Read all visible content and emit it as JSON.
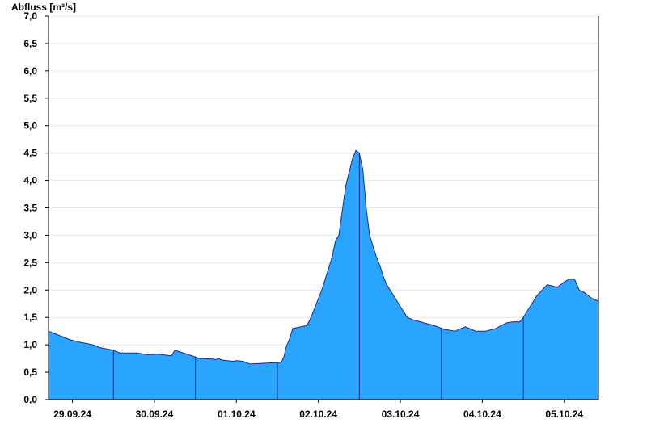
{
  "chart_data": {
    "type": "area",
    "title": "",
    "ylabel": "Abfluss [m³/s]",
    "xlabel": "",
    "ylim": [
      0,
      7.0
    ],
    "yticks": [
      "0,0",
      "0,5",
      "1,0",
      "1,5",
      "2,0",
      "2,5",
      "3,0",
      "3,5",
      "4,0",
      "4,5",
      "5,0",
      "5,5",
      "6,0",
      "6,5",
      "7,0"
    ],
    "ytick_values": [
      0,
      0.5,
      1.0,
      1.5,
      2.0,
      2.5,
      3.0,
      3.5,
      4.0,
      4.5,
      5.0,
      5.5,
      6.0,
      6.5,
      7.0
    ],
    "xlim": [
      "28.09.24 17:00",
      "05.10.24 10:00"
    ],
    "xticks": [
      "29.09.24",
      "30.09.24",
      "01.10.24",
      "02.10.24",
      "03.10.24",
      "04.10.24",
      "05.10.24"
    ],
    "day_separators": [
      "29.09.24 12:00",
      "30.09.24 12:00",
      "01.10.24 12:00",
      "02.10.24 12:00",
      "03.10.24 12:00",
      "04.10.24 12:00"
    ],
    "grid": true,
    "colors": {
      "fill": "#2aa5ff",
      "line": "#1a2b8c"
    },
    "series": [
      {
        "x": [
          "28.09.24 17:00",
          "28.09.24 19:00",
          "28.09.24 21:00",
          "28.09.24 23:00",
          "29.09.24 02:00",
          "29.09.24 06:00",
          "29.09.24 08:00",
          "29.09.24 12:00",
          "29.09.24 14:00",
          "29.09.24 16:00",
          "29.09.24 19:00",
          "29.09.24 22:00",
          "30.09.24 01:00",
          "30.09.24 05:00",
          "30.09.24 06:00",
          "30.09.24 12:00",
          "30.09.24 13:00",
          "30.09.24 14:00",
          "30.09.24 17:00",
          "30.09.24 18:00",
          "30.09.24 18:45",
          "30.09.24 19:30",
          "30.09.24 20:00",
          "30.09.24 23:00",
          "01.10.24 00:00",
          "01.10.24 02:00",
          "01.10.24 02:45",
          "01.10.24 03:30",
          "01.10.24 04:00",
          "01.10.24 13:00",
          "01.10.24 13:30",
          "01.10.24 14:00",
          "01.10.24 14:30",
          "01.10.24 15:30",
          "01.10.24 16:30",
          "01.10.24 20:30",
          "01.10.24 21:30",
          "02.10.24 01:00",
          "02.10.24 04:00",
          "02.10.24 05:00",
          "02.10.24 06:00",
          "02.10.24 08:00",
          "02.10.24 10:00",
          "02.10.24 11:00",
          "02.10.24 12:00",
          "02.10.24 13:00",
          "02.10.24 14:00",
          "02.10.24 15:00",
          "02.10.24 17:00",
          "02.10.24 18:00",
          "02.10.24 19:00",
          "02.10.24 20:00",
          "02.10.24 21:00",
          "02.10.24 22:00",
          "02.10.24 23:00",
          "03.10.24 00:00",
          "03.10.24 01:00",
          "03.10.24 02:00",
          "03.10.24 04:00",
          "03.10.24 07:00",
          "03.10.24 10:00",
          "03.10.24 13:00",
          "03.10.24 16:00",
          "03.10.24 19:00",
          "03.10.24 22:00",
          "04.10.24 01:00",
          "04.10.24 04:00",
          "04.10.24 07:00",
          "04.10.24 09:00",
          "04.10.24 10:00",
          "04.10.24 11:00",
          "04.10.24 12:00",
          "04.10.24 13:00",
          "04.10.24 16:00",
          "04.10.24 19:00",
          "04.10.24 22:00",
          "05.10.24 00:00",
          "05.10.24 01:30",
          "05.10.24 03:00",
          "05.10.24 03:40",
          "05.10.24 04:20",
          "05.10.24 06:00",
          "05.10.24 07:00",
          "05.10.24 08:00",
          "05.10.24 09:00",
          "05.10.24 10:00"
        ],
        "values": [
          1.25,
          1.2,
          1.15,
          1.1,
          1.05,
          1.0,
          0.95,
          0.9,
          0.85,
          0.85,
          0.85,
          0.82,
          0.83,
          0.8,
          0.9,
          0.78,
          0.75,
          0.75,
          0.74,
          0.73,
          0.75,
          0.73,
          0.72,
          0.7,
          0.71,
          0.7,
          0.68,
          0.66,
          0.65,
          0.68,
          0.72,
          0.8,
          0.95,
          1.1,
          1.3,
          1.35,
          1.45,
          2.0,
          2.6,
          2.9,
          3.0,
          3.9,
          4.4,
          4.55,
          4.5,
          4.2,
          3.5,
          3.0,
          2.6,
          2.45,
          2.25,
          2.1,
          2.0,
          1.9,
          1.8,
          1.7,
          1.6,
          1.5,
          1.45,
          1.4,
          1.35,
          1.28,
          1.25,
          1.33,
          1.25,
          1.25,
          1.3,
          1.4,
          1.42,
          1.42,
          1.42,
          1.5,
          1.6,
          1.9,
          2.1,
          2.05,
          2.15,
          2.2,
          2.2,
          2.1,
          2.0,
          1.95,
          1.9,
          1.85,
          1.82,
          1.8
        ]
      }
    ]
  }
}
